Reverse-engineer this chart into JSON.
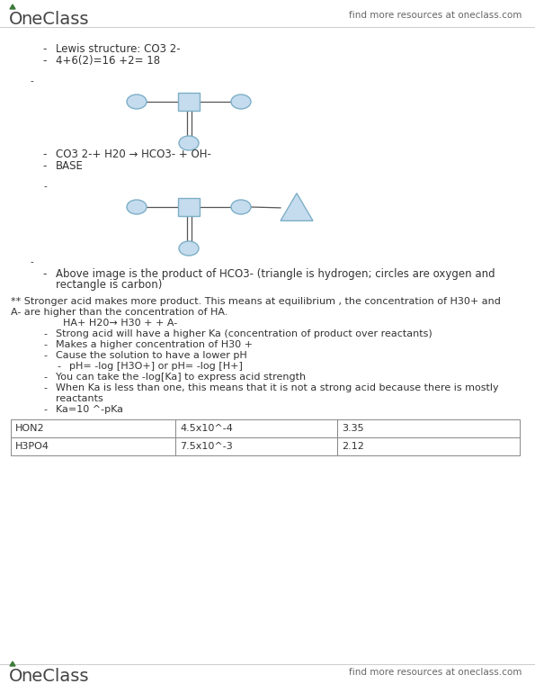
{
  "bg_color": "#ffffff",
  "header_right_text": "find more resources at oneclass.com",
  "footer_right_text": "find more resources at oneclass.com",
  "bullet1": "Lewis structure: CO3 2-",
  "bullet2": "4+6(2)=16 +2= 18",
  "bullet3": "CO3 2-+ H20 → HCO3- + OH-",
  "bullet4": "BASE",
  "caption_line1": "Above image is the product of HCO3- (triangle is hydrogen; circles are oxygen and",
  "caption_line2": "rectangle is carbon)",
  "stronger_acid_line1": "** Stronger acid makes more product. This means at equilibrium , the concentration of H30+ and",
  "stronger_acid_line2": "A- are higher than the concentration of HA.",
  "ha_equation": "HA+ H20→ H30 + + A-",
  "sub_bullet1": "Strong acid will have a higher Ka (concentration of product over reactants)",
  "sub_bullet2": "Makes a higher concentration of H30 +",
  "sub_bullet3": "Cause the solution to have a lower pH",
  "sub_sub_bullet1": "pH= -log [H3O+] or pH= -log [H+]",
  "sub_bullet4": "You can take the -log[Ka] to express acid strength",
  "sub_bullet5a": "When Ka is less than one, this means that it is not a strong acid because there is mostly",
  "sub_bullet5b": "reactants",
  "sub_bullet6": "Ka=10 ^-pKa",
  "table_data": [
    [
      "HON2",
      "4.5x10^-4",
      "3.35"
    ],
    [
      "H3PO4",
      "7.5x10^-3",
      "2.12"
    ]
  ],
  "shape_fill": "#c5dcee",
  "shape_edge": "#7dafc8",
  "onec_green": "#3d7a3a",
  "text_color": "#333333",
  "gray_text": "#666666",
  "line_color": "#555555",
  "body_font": 8.5,
  "small_font": 8.0,
  "logo_font": 14
}
